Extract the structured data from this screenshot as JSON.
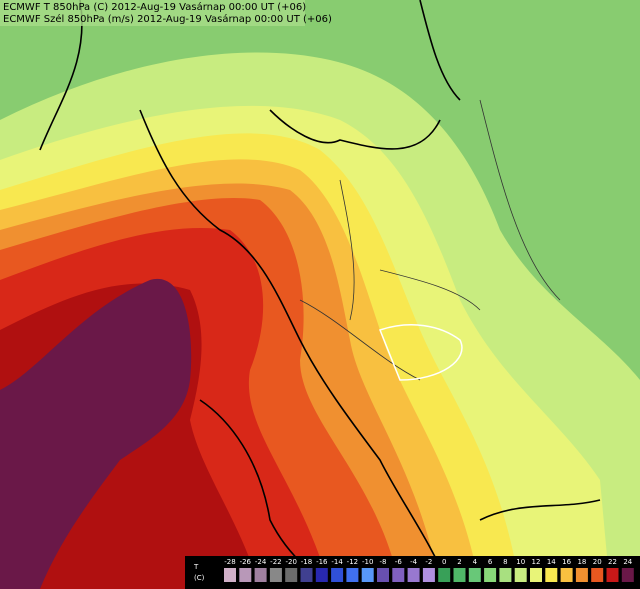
{
  "header": {
    "line1": "ECMWF  T 850hPa (C)  2012-Aug-19 Vasárnap 00:00 UT (+06)",
    "line2": "ECMWF  Szél 850hPa (m/s)  2012-Aug-19 Vasárnap 00:00 UT (+06)"
  },
  "legend": {
    "variable": "T",
    "unit": "(C)",
    "ticks": [
      "-28",
      "-26",
      "-24",
      "-22",
      "-20",
      "-18",
      "-16",
      "-14",
      "-12",
      "-10",
      "-8",
      "-6",
      "-4",
      "-2",
      "0",
      "2",
      "4",
      "6",
      "8",
      "10",
      "12",
      "14",
      "16",
      "18",
      "20",
      "22",
      "24"
    ],
    "colors": [
      "#d0b0c8",
      "#b898b8",
      "#a080a0",
      "#888888",
      "#6c6c6c",
      "#404090",
      "#2828b0",
      "#3050d8",
      "#4070f0",
      "#5898f8",
      "#6850b0",
      "#8060c0",
      "#9878d0",
      "#b090e0",
      "#38a058",
      "#50b868",
      "#68c878",
      "#88d878",
      "#a8e080",
      "#c8ec80",
      "#e8f478",
      "#f8e850",
      "#f8c040",
      "#f09030",
      "#e85820",
      "#c81818",
      "#6a1848"
    ]
  }
}
